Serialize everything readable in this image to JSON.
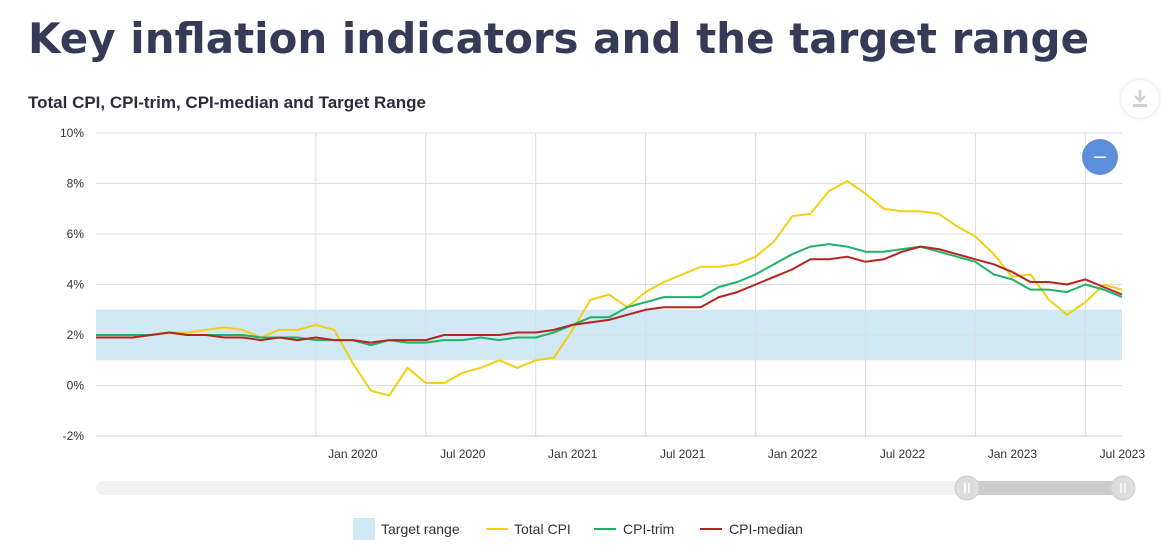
{
  "page": {
    "title": "Key inflation indicators and the target range"
  },
  "chart_data": {
    "type": "line",
    "title": "Total CPI, CPI-trim, CPI-median and Target Range",
    "ylim": [
      -2,
      10
    ],
    "y_ticks": [
      "10%",
      "8%",
      "6%",
      "4%",
      "2%",
      "0%",
      "-2%"
    ],
    "y_tick_values": [
      10,
      8,
      6,
      4,
      2,
      0,
      -2
    ],
    "x_ticks": [
      "Jan 2020",
      "Jul 2020",
      "Jan 2021",
      "Jul 2021",
      "Jan 2022",
      "Jul 2022",
      "Jan 2023",
      "Jul 2023"
    ],
    "x_tick_indices": [
      12,
      18,
      24,
      30,
      36,
      42,
      48,
      54
    ],
    "x_months": [
      "Jan 2019",
      "Feb 2019",
      "Mar 2019",
      "Apr 2019",
      "May 2019",
      "Jun 2019",
      "Jul 2019",
      "Aug 2019",
      "Sep 2019",
      "Oct 2019",
      "Nov 2019",
      "Dec 2019",
      "Jan 2020",
      "Feb 2020",
      "Mar 2020",
      "Apr 2020",
      "May 2020",
      "Jun 2020",
      "Jul 2020",
      "Aug 2020",
      "Sep 2020",
      "Oct 2020",
      "Nov 2020",
      "Dec 2020",
      "Jan 2021",
      "Feb 2021",
      "Mar 2021",
      "Apr 2021",
      "May 2021",
      "Jun 2021",
      "Jul 2021",
      "Aug 2021",
      "Sep 2021",
      "Oct 2021",
      "Nov 2021",
      "Dec 2021",
      "Jan 2022",
      "Feb 2022",
      "Mar 2022",
      "Apr 2022",
      "May 2022",
      "Jun 2022",
      "Jul 2022",
      "Aug 2022",
      "Sep 2022",
      "Oct 2022",
      "Nov 2022",
      "Dec 2022",
      "Jan 2023",
      "Feb 2023",
      "Mar 2023",
      "Apr 2023",
      "May 2023",
      "Jun 2023",
      "Jul 2023",
      "Aug 2023",
      "Sep 2023"
    ],
    "target_range": {
      "name": "Target range",
      "low": 1,
      "high": 3,
      "color": "#d1e8f5"
    },
    "series": [
      {
        "name": "Total CPI",
        "color": "#f5cf14",
        "values": [
          1.9,
          1.9,
          1.9,
          2.0,
          2.1,
          2.1,
          2.2,
          2.3,
          2.2,
          1.9,
          2.2,
          2.2,
          2.4,
          2.2,
          0.9,
          -0.2,
          -0.4,
          0.7,
          0.1,
          0.1,
          0.5,
          0.7,
          1.0,
          0.7,
          1.0,
          1.1,
          2.2,
          3.4,
          3.6,
          3.1,
          3.7,
          4.1,
          4.4,
          4.7,
          4.7,
          4.8,
          5.1,
          5.7,
          6.7,
          6.8,
          7.7,
          8.1,
          7.6,
          7.0,
          6.9,
          6.9,
          6.8,
          6.3,
          5.9,
          5.2,
          4.3,
          4.4,
          3.4,
          2.8,
          3.3,
          4.0,
          3.8
        ]
      },
      {
        "name": "CPI-trim",
        "color": "#21b26a",
        "values": [
          2.0,
          2.0,
          2.0,
          2.0,
          2.1,
          2.0,
          2.0,
          2.0,
          2.0,
          1.9,
          1.9,
          1.9,
          1.8,
          1.8,
          1.8,
          1.6,
          1.8,
          1.7,
          1.7,
          1.8,
          1.8,
          1.9,
          1.8,
          1.9,
          1.9,
          2.1,
          2.4,
          2.7,
          2.7,
          3.1,
          3.3,
          3.5,
          3.5,
          3.5,
          3.9,
          4.1,
          4.4,
          4.8,
          5.2,
          5.5,
          5.6,
          5.5,
          5.3,
          5.3,
          5.4,
          5.5,
          5.3,
          5.1,
          4.9,
          4.4,
          4.2,
          3.8,
          3.8,
          3.7,
          4.0,
          3.8,
          3.5
        ]
      },
      {
        "name": "CPI-median",
        "color": "#b3261e",
        "values": [
          1.9,
          1.9,
          1.9,
          2.0,
          2.1,
          2.0,
          2.0,
          1.9,
          1.9,
          1.8,
          1.9,
          1.8,
          1.9,
          1.8,
          1.8,
          1.7,
          1.8,
          1.8,
          1.8,
          2.0,
          2.0,
          2.0,
          2.0,
          2.1,
          2.1,
          2.2,
          2.4,
          2.5,
          2.6,
          2.8,
          3.0,
          3.1,
          3.1,
          3.1,
          3.5,
          3.7,
          4.0,
          4.3,
          4.6,
          5.0,
          5.0,
          5.1,
          4.9,
          5.0,
          5.3,
          5.5,
          5.4,
          5.2,
          5.0,
          4.8,
          4.5,
          4.1,
          4.1,
          4.0,
          4.2,
          3.9,
          3.6
        ]
      }
    ],
    "legend": [
      "Target range",
      "Total CPI",
      "CPI-trim",
      "CPI-median"
    ],
    "legend_position": "bottom",
    "grid": true
  }
}
